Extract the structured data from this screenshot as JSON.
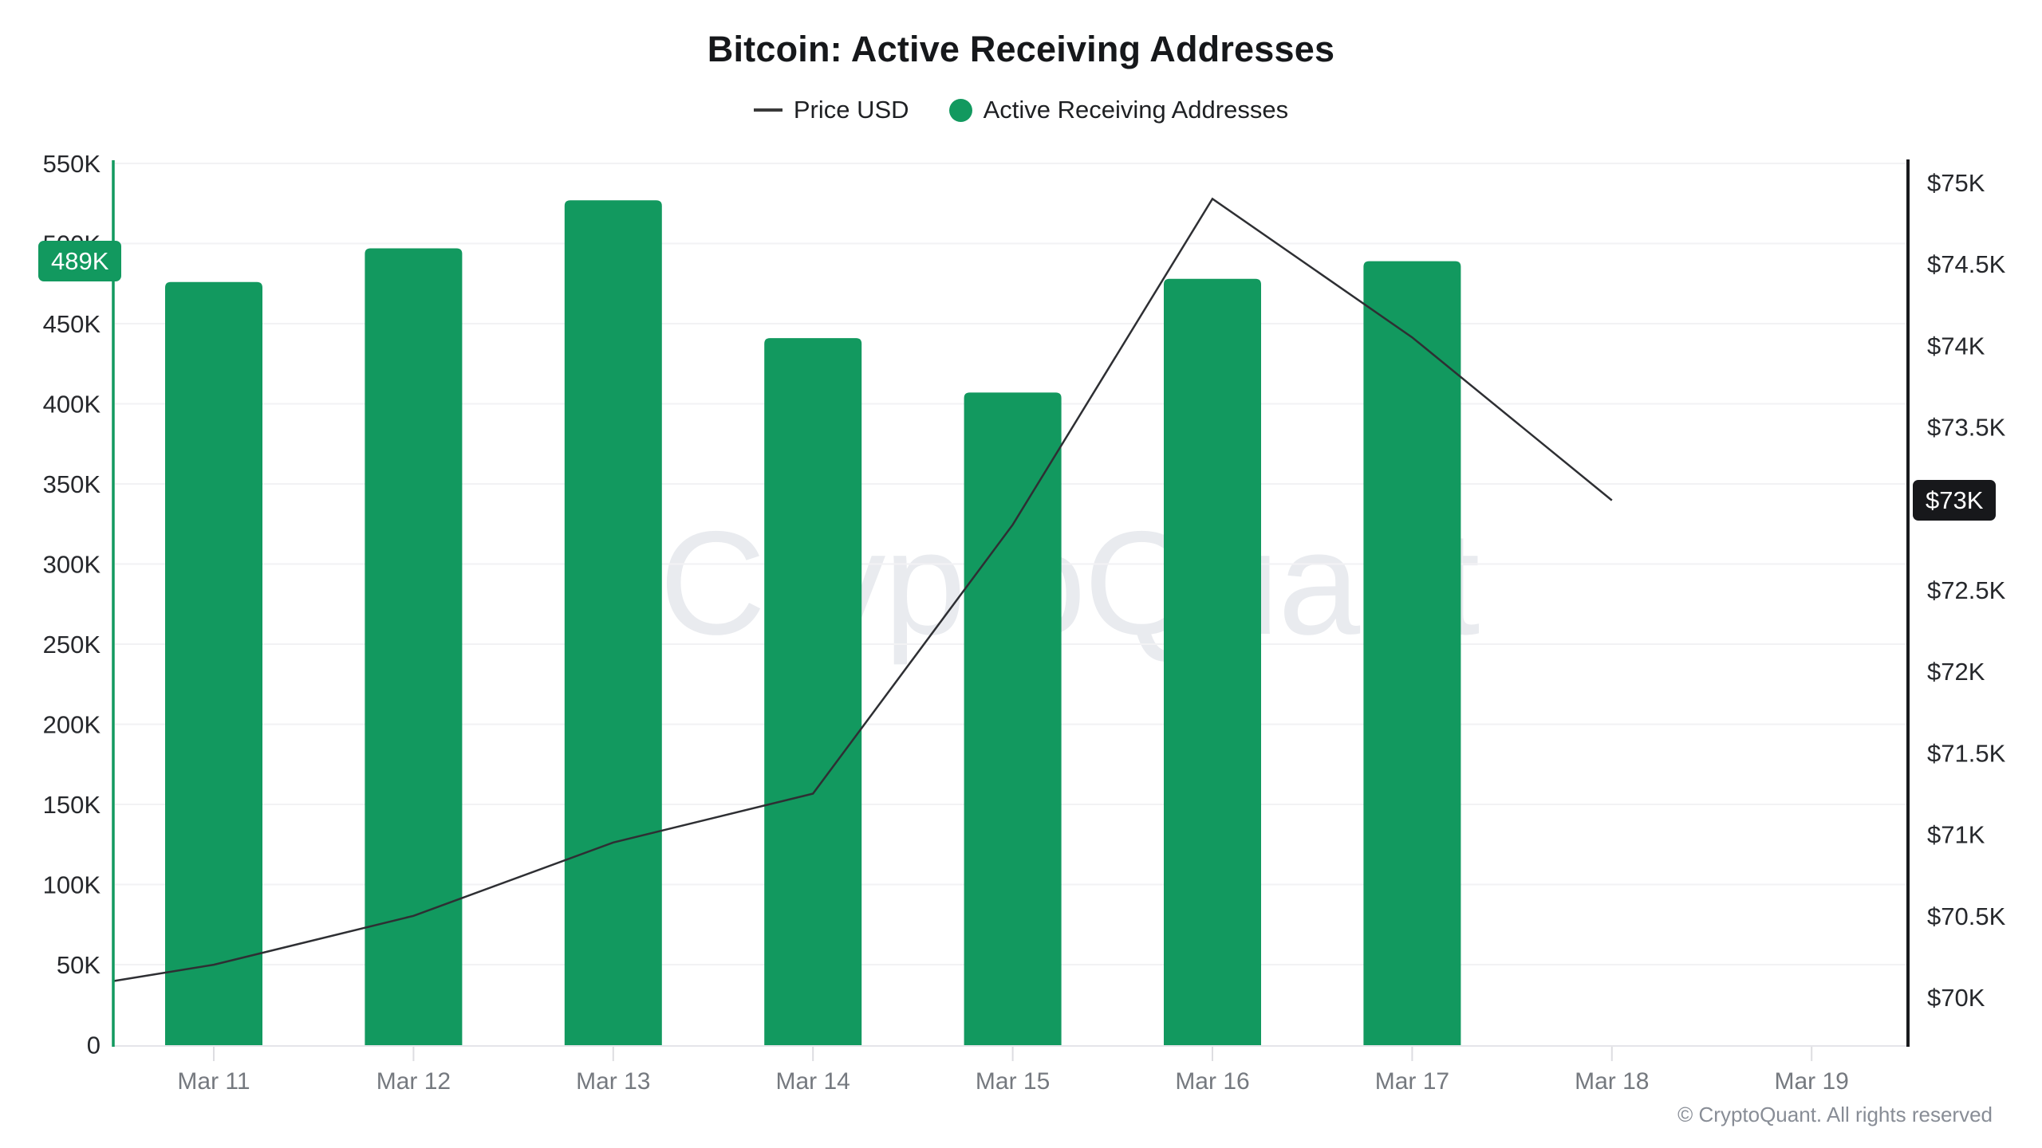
{
  "title": "Bitcoin: Active Receiving Addresses",
  "legend": {
    "items": [
      {
        "label": "Price USD",
        "marker": "line",
        "color": "#3a3a3a"
      },
      {
        "label": "Active Receiving Addresses",
        "marker": "circle",
        "color": "#12995f"
      }
    ]
  },
  "watermark": "CryptoQuant",
  "footer": "© CryptoQuant. All rights reserved",
  "badges": {
    "left": {
      "text": "489K",
      "color": "#12995f"
    },
    "right": {
      "text": "$73K",
      "color": "#17181b"
    }
  },
  "chart_data": {
    "type": "bar+line",
    "title": "Bitcoin: Active Receiving Addresses",
    "categories": [
      "Mar 11",
      "Mar 12",
      "Mar 13",
      "Mar 14",
      "Mar 15",
      "Mar 16",
      "Mar 17",
      "Mar 18",
      "Mar 19"
    ],
    "series": [
      {
        "name": "Active Receiving Addresses",
        "type": "bar",
        "axis": "left",
        "color": "#12995f",
        "values": [
          476000,
          497000,
          527000,
          441000,
          407000,
          478000,
          489000,
          null,
          null
        ]
      },
      {
        "name": "Price USD",
        "type": "line",
        "axis": "right",
        "color": "#2e2f33",
        "edge_start_usd": 70100,
        "values": [
          70200,
          70500,
          70950,
          71250,
          72900,
          74900,
          74050,
          73050,
          null
        ]
      }
    ],
    "left_axis": {
      "min": 0,
      "max": 550000,
      "tick_step": 50000,
      "tick_labels": [
        "550K",
        "500K",
        "450K",
        "400K",
        "350K",
        "300K",
        "250K",
        "200K",
        "150K",
        "100K",
        "50K",
        "0"
      ],
      "label_color": "#26282c",
      "axis_line_color": "#12995f"
    },
    "right_axis": {
      "min": 70000,
      "max": 75000,
      "tick_step": 500,
      "tick_labels": [
        "$75K",
        "$74.5K",
        "$74K",
        "$73.5K",
        "$73K",
        "$72.5K",
        "$72K",
        "$71.5K",
        "$71K",
        "$70.5K",
        "$70K"
      ],
      "hidden_tick_label": "$73K",
      "label_color": "#26282c",
      "axis_line_color": "#191a1d"
    },
    "x_axis": {
      "label_color": "#75797f"
    },
    "grid": true,
    "legend_position": "top",
    "latest_bar_value_label": "489K",
    "latest_price_value_label": "$73K"
  }
}
